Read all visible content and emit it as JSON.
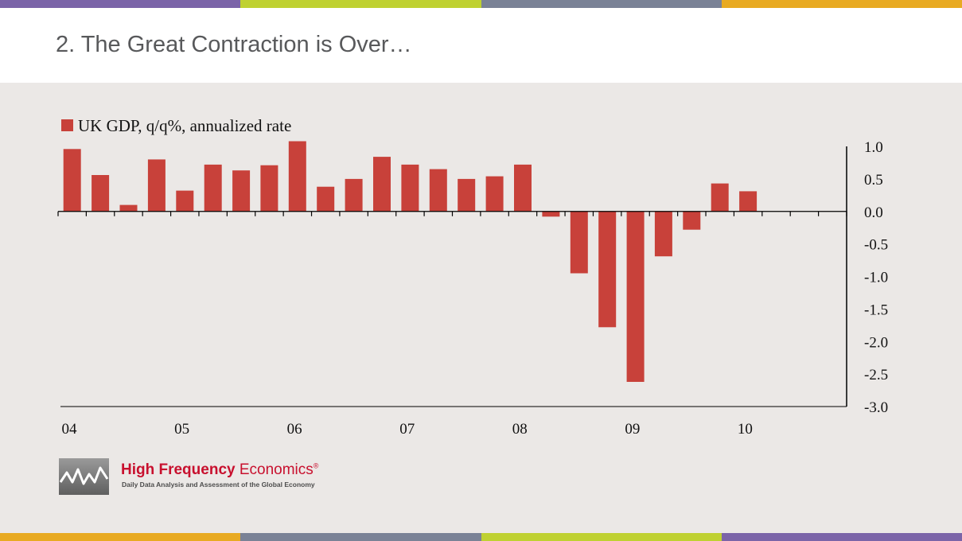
{
  "slide": {
    "title": "2.  The Great Contraction is Over…"
  },
  "colors": {
    "stripe_top": [
      "#7b64a8",
      "#bfd131",
      "#7a8296",
      "#e8aa22"
    ],
    "stripe_bottom": [
      "#e8aa22",
      "#7a8296",
      "#bfd131",
      "#7b64a8"
    ],
    "bar": "#c8413a",
    "panel_background": "#ebe8e6"
  },
  "logo": {
    "name_bold": "High Frequency",
    "name_light": "Economics",
    "registered": "®",
    "tagline": "Daily Data Analysis and Assessment of the Global Economy"
  },
  "chart_data": {
    "type": "bar",
    "legend": "UK GDP, q/q%, annualized rate",
    "legend_position": "top-left",
    "y_axis_side": "right",
    "ylim": [
      -3.0,
      1.0
    ],
    "yticks": [
      "1.0",
      "0.5",
      "0.0",
      "-0.5",
      "-1.0",
      "-1.5",
      "-2.0",
      "-2.5",
      "-3.0"
    ],
    "ytick_values": [
      1.0,
      0.5,
      0.0,
      -0.5,
      -1.0,
      -1.5,
      -2.0,
      -2.5,
      -3.0
    ],
    "xtick_labels": [
      "04",
      "05",
      "06",
      "07",
      "08",
      "09",
      "10"
    ],
    "grid": false,
    "categories": [
      "2004Q1",
      "2004Q2",
      "2004Q3",
      "2004Q4",
      "2005Q1",
      "2005Q2",
      "2005Q3",
      "2005Q4",
      "2006Q1",
      "2006Q2",
      "2006Q3",
      "2006Q4",
      "2007Q1",
      "2007Q2",
      "2007Q3",
      "2007Q4",
      "2008Q1",
      "2008Q2",
      "2008Q3",
      "2008Q4",
      "2009Q1",
      "2009Q2",
      "2009Q3",
      "2009Q4",
      "2010Q1",
      "2010Q2",
      "2010Q3",
      "2010Q4"
    ],
    "values": [
      0.96,
      0.56,
      0.1,
      0.8,
      0.32,
      0.72,
      0.63,
      0.71,
      1.08,
      0.38,
      0.5,
      0.84,
      0.72,
      0.65,
      0.5,
      0.54,
      0.72,
      -0.08,
      -0.95,
      -1.78,
      -2.62,
      -0.69,
      -0.28,
      0.43,
      0.31,
      null,
      null,
      null
    ]
  }
}
